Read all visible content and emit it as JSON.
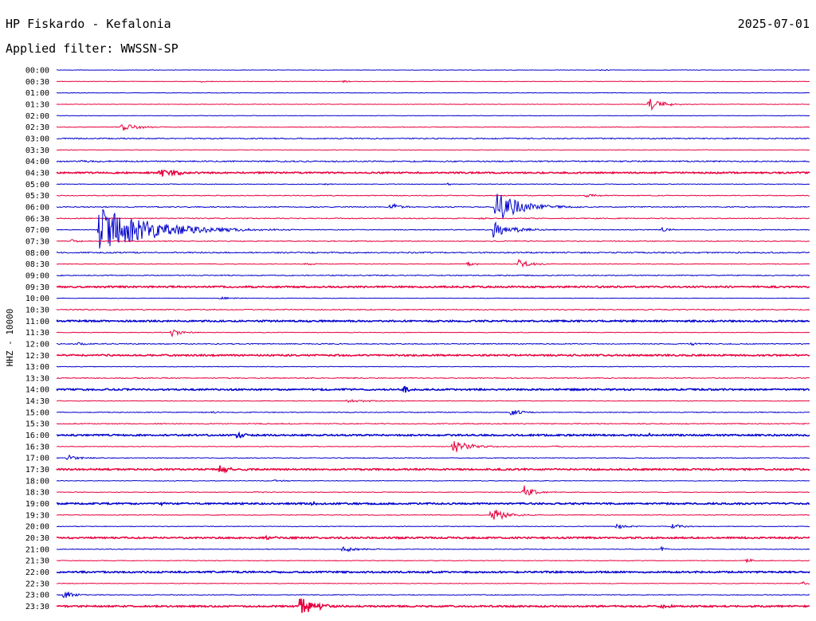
{
  "header": {
    "station": "HP Fiskardo - Kefalonia",
    "filter": "Applied filter: WWSSN-SP",
    "date": "2025-07-01"
  },
  "chart_data": {
    "type": "line",
    "channel_label": "HHZ - 10000",
    "x_unit": "minutes after the hour-row start",
    "x_range": [
      0,
      30
    ],
    "colors": [
      "#0000cc",
      "#e8003d"
    ],
    "rows": [
      {
        "label": "00:00",
        "noise": 0.3,
        "events": [
          {
            "t": 21.7,
            "amp": 1.0,
            "dur": 0.7
          }
        ]
      },
      {
        "label": "00:30",
        "noise": 0.3,
        "events": [
          {
            "t": 5.8,
            "amp": 1.5,
            "dur": 0.5
          },
          {
            "t": 11.4,
            "amp": 1.5,
            "dur": 0.5
          }
        ]
      },
      {
        "label": "01:00",
        "noise": 0.3,
        "events": []
      },
      {
        "label": "01:30",
        "noise": 0.3,
        "events": [
          {
            "t": 23.6,
            "amp": 9.0,
            "dur": 1.1
          }
        ]
      },
      {
        "label": "02:00",
        "noise": 0.3,
        "events": []
      },
      {
        "label": "02:30",
        "noise": 0.4,
        "events": [
          {
            "t": 2.6,
            "amp": 6.0,
            "dur": 1.2
          }
        ]
      },
      {
        "label": "03:00",
        "noise": 0.7,
        "events": []
      },
      {
        "label": "03:30",
        "noise": 0.3,
        "events": []
      },
      {
        "label": "04:00",
        "noise": 0.8,
        "events": [
          {
            "t": 1.0,
            "amp": 1.2,
            "dur": 1.5
          }
        ]
      },
      {
        "label": "04:30",
        "noise": 0.9,
        "events": [
          {
            "t": 4.1,
            "amp": 6.0,
            "dur": 1.3
          }
        ]
      },
      {
        "label": "05:00",
        "noise": 0.4,
        "events": [
          {
            "t": 10.7,
            "amp": 1.5,
            "dur": 0.6
          },
          {
            "t": 15.6,
            "amp": 1.5,
            "dur": 0.6
          }
        ]
      },
      {
        "label": "05:30",
        "noise": 0.5,
        "events": [
          {
            "t": 21.1,
            "amp": 2.5,
            "dur": 1.0
          }
        ]
      },
      {
        "label": "06:00",
        "noise": 0.6,
        "events": [
          {
            "t": 13.3,
            "amp": 5.0,
            "dur": 0.9
          },
          {
            "t": 17.5,
            "amp": 20.0,
            "dur": 2.2
          }
        ]
      },
      {
        "label": "06:30",
        "noise": 0.6,
        "events": [
          {
            "t": 16.9,
            "amp": 2.0,
            "dur": 0.6
          }
        ]
      },
      {
        "label": "07:00",
        "noise": 0.5,
        "events": [
          {
            "t": 1.7,
            "amp": 30.0,
            "dur": 4.3
          },
          {
            "t": 17.4,
            "amp": 11.0,
            "dur": 1.7
          },
          {
            "t": 24.1,
            "amp": 3.0,
            "dur": 0.8
          }
        ]
      },
      {
        "label": "07:30",
        "noise": 0.5,
        "events": [
          {
            "t": 0.6,
            "amp": 3.0,
            "dur": 0.6
          }
        ]
      },
      {
        "label": "08:00",
        "noise": 0.8,
        "events": []
      },
      {
        "label": "08:30",
        "noise": 0.4,
        "events": [
          {
            "t": 9.9,
            "amp": 1.0,
            "dur": 2.4
          },
          {
            "t": 16.4,
            "amp": 3.5,
            "dur": 0.6
          },
          {
            "t": 18.4,
            "amp": 6.0,
            "dur": 1.0
          }
        ]
      },
      {
        "label": "09:00",
        "noise": 0.6,
        "events": []
      },
      {
        "label": "09:30",
        "noise": 1.0,
        "events": []
      },
      {
        "label": "10:00",
        "noise": 0.3,
        "events": [
          {
            "t": 6.5,
            "amp": 1.5,
            "dur": 1.5
          }
        ]
      },
      {
        "label": "10:30",
        "noise": 0.6,
        "events": []
      },
      {
        "label": "11:00",
        "noise": 1.0,
        "events": []
      },
      {
        "label": "11:30",
        "noise": 0.4,
        "events": [
          {
            "t": 4.6,
            "amp": 5.0,
            "dur": 0.8
          }
        ]
      },
      {
        "label": "12:00",
        "noise": 0.6,
        "events": [
          {
            "t": 0.8,
            "amp": 2.0,
            "dur": 1.2
          },
          {
            "t": 25.3,
            "amp": 2.0,
            "dur": 0.6
          }
        ]
      },
      {
        "label": "12:30",
        "noise": 1.0,
        "events": []
      },
      {
        "label": "13:00",
        "noise": 0.4,
        "events": []
      },
      {
        "label": "13:30",
        "noise": 0.6,
        "events": []
      },
      {
        "label": "14:00",
        "noise": 1.0,
        "events": [
          {
            "t": 13.8,
            "amp": 4.5,
            "dur": 0.8
          }
        ]
      },
      {
        "label": "14:30",
        "noise": 0.4,
        "events": [
          {
            "t": 11.6,
            "amp": 2.0,
            "dur": 1.9
          }
        ]
      },
      {
        "label": "15:00",
        "noise": 0.5,
        "events": [
          {
            "t": 6.2,
            "amp": 1.5,
            "dur": 0.8
          },
          {
            "t": 18.1,
            "amp": 4.5,
            "dur": 0.9
          }
        ]
      },
      {
        "label": "15:30",
        "noise": 0.6,
        "events": []
      },
      {
        "label": "16:00",
        "noise": 1.0,
        "events": [
          {
            "t": 7.2,
            "amp": 4.0,
            "dur": 0.6
          },
          {
            "t": 23.6,
            "amp": 2.0,
            "dur": 0.4
          }
        ]
      },
      {
        "label": "16:30",
        "noise": 0.4,
        "events": [
          {
            "t": 15.8,
            "amp": 10.0,
            "dur": 1.3
          },
          {
            "t": 19.8,
            "amp": 1.5,
            "dur": 0.7
          }
        ]
      },
      {
        "label": "17:00",
        "noise": 0.5,
        "events": [
          {
            "t": 0.4,
            "amp": 5.0,
            "dur": 0.9
          }
        ]
      },
      {
        "label": "17:30",
        "noise": 1.0,
        "events": [
          {
            "t": 6.5,
            "amp": 4.5,
            "dur": 1.0
          }
        ]
      },
      {
        "label": "18:00",
        "noise": 0.4,
        "events": [
          {
            "t": 8.7,
            "amp": 2.0,
            "dur": 0.6
          }
        ]
      },
      {
        "label": "18:30",
        "noise": 0.4,
        "events": [
          {
            "t": 7.9,
            "amp": 1.0,
            "dur": 1.6
          },
          {
            "t": 18.6,
            "amp": 9.0,
            "dur": 0.8
          }
        ]
      },
      {
        "label": "19:00",
        "noise": 1.0,
        "events": [
          {
            "t": 4.2,
            "amp": 2.0,
            "dur": 0.5
          },
          {
            "t": 10.1,
            "amp": 2.0,
            "dur": 0.5
          }
        ]
      },
      {
        "label": "19:30",
        "noise": 0.4,
        "events": [
          {
            "t": 17.3,
            "amp": 9.0,
            "dur": 1.3
          }
        ]
      },
      {
        "label": "20:00",
        "noise": 0.4,
        "events": [
          {
            "t": 22.3,
            "amp": 3.5,
            "dur": 0.9
          },
          {
            "t": 24.5,
            "amp": 3.5,
            "dur": 0.9
          }
        ]
      },
      {
        "label": "20:30",
        "noise": 1.0,
        "events": [
          {
            "t": 8.4,
            "amp": 3.0,
            "dur": 0.4
          }
        ]
      },
      {
        "label": "21:00",
        "noise": 0.4,
        "events": [
          {
            "t": 11.4,
            "amp": 4.0,
            "dur": 1.2
          },
          {
            "t": 24.1,
            "amp": 3.5,
            "dur": 0.4
          }
        ]
      },
      {
        "label": "21:30",
        "noise": 0.4,
        "events": [
          {
            "t": 27.5,
            "amp": 3.5,
            "dur": 0.4
          }
        ]
      },
      {
        "label": "22:00",
        "noise": 1.0,
        "events": []
      },
      {
        "label": "22:30",
        "noise": 0.4,
        "events": [
          {
            "t": 29.7,
            "amp": 3.0,
            "dur": 0.4
          }
        ]
      },
      {
        "label": "23:00",
        "noise": 0.5,
        "events": [
          {
            "t": 0.3,
            "amp": 7.0,
            "dur": 0.7
          }
        ]
      },
      {
        "label": "23:30",
        "noise": 1.0,
        "events": [
          {
            "t": 9.7,
            "amp": 14.0,
            "dur": 0.9
          },
          {
            "t": 10.5,
            "amp": 5.0,
            "dur": 0.8
          },
          {
            "t": 24.1,
            "amp": 3.0,
            "dur": 0.6
          }
        ]
      }
    ]
  }
}
